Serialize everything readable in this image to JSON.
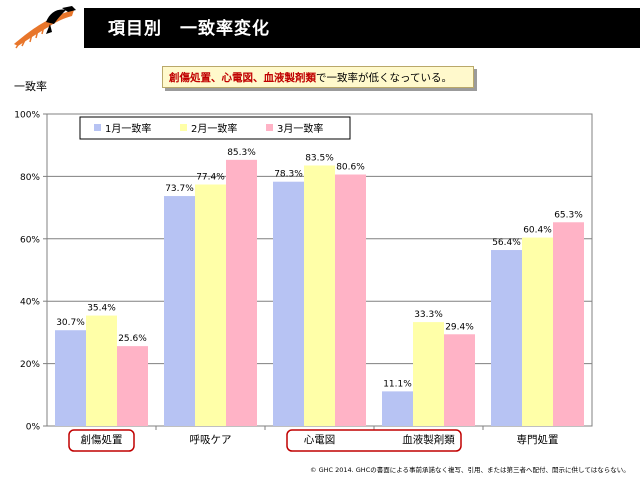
{
  "header": {
    "title": "項目別　一致率変化"
  },
  "callout": {
    "highlight": "創傷処置、心電図、血液製剤類",
    "rest": "で一致率が低くなっている。"
  },
  "footer": {
    "text": "© GHC 2014.  GHCの書面による事前承諾なく複写、引用、または第三者へ配付、開示に供してはならない。"
  },
  "colors": {
    "header_bg": "#000000",
    "series1": "#b7c3f3",
    "series2": "#ffffa8",
    "series3": "#ffb3c6",
    "highlight_box": "#c00000",
    "callout_bg": "#fff9cc"
  },
  "chart_data": {
    "type": "bar",
    "ylabel": "一致率",
    "ylim": [
      0,
      100
    ],
    "yticks": [
      "0%",
      "20%",
      "40%",
      "60%",
      "80%",
      "100%"
    ],
    "categories": [
      "創傷処置",
      "呼吸ケア",
      "心電図",
      "血液製剤類",
      "専門処置"
    ],
    "highlighted_categories": [
      "創傷処置",
      "心電図",
      "血液製剤類"
    ],
    "legend_position": "top-left",
    "grid": true,
    "series": [
      {
        "name": "1月一致率",
        "values": [
          30.7,
          73.7,
          78.3,
          11.1,
          56.4
        ],
        "labels": [
          "30.7%",
          "73.7%",
          "78.3%",
          "11.1%",
          "56.4%"
        ]
      },
      {
        "name": "2月一致率",
        "values": [
          35.4,
          77.4,
          83.5,
          33.3,
          60.4
        ],
        "labels": [
          "35.4%",
          "77.4%",
          "83.5%",
          "33.3%",
          "60.4%"
        ]
      },
      {
        "name": "3月一致率",
        "values": [
          25.6,
          85.3,
          80.6,
          29.4,
          65.3
        ],
        "labels": [
          "25.6%",
          "85.3%",
          "80.6%",
          "29.4%",
          "65.3%"
        ]
      }
    ]
  }
}
